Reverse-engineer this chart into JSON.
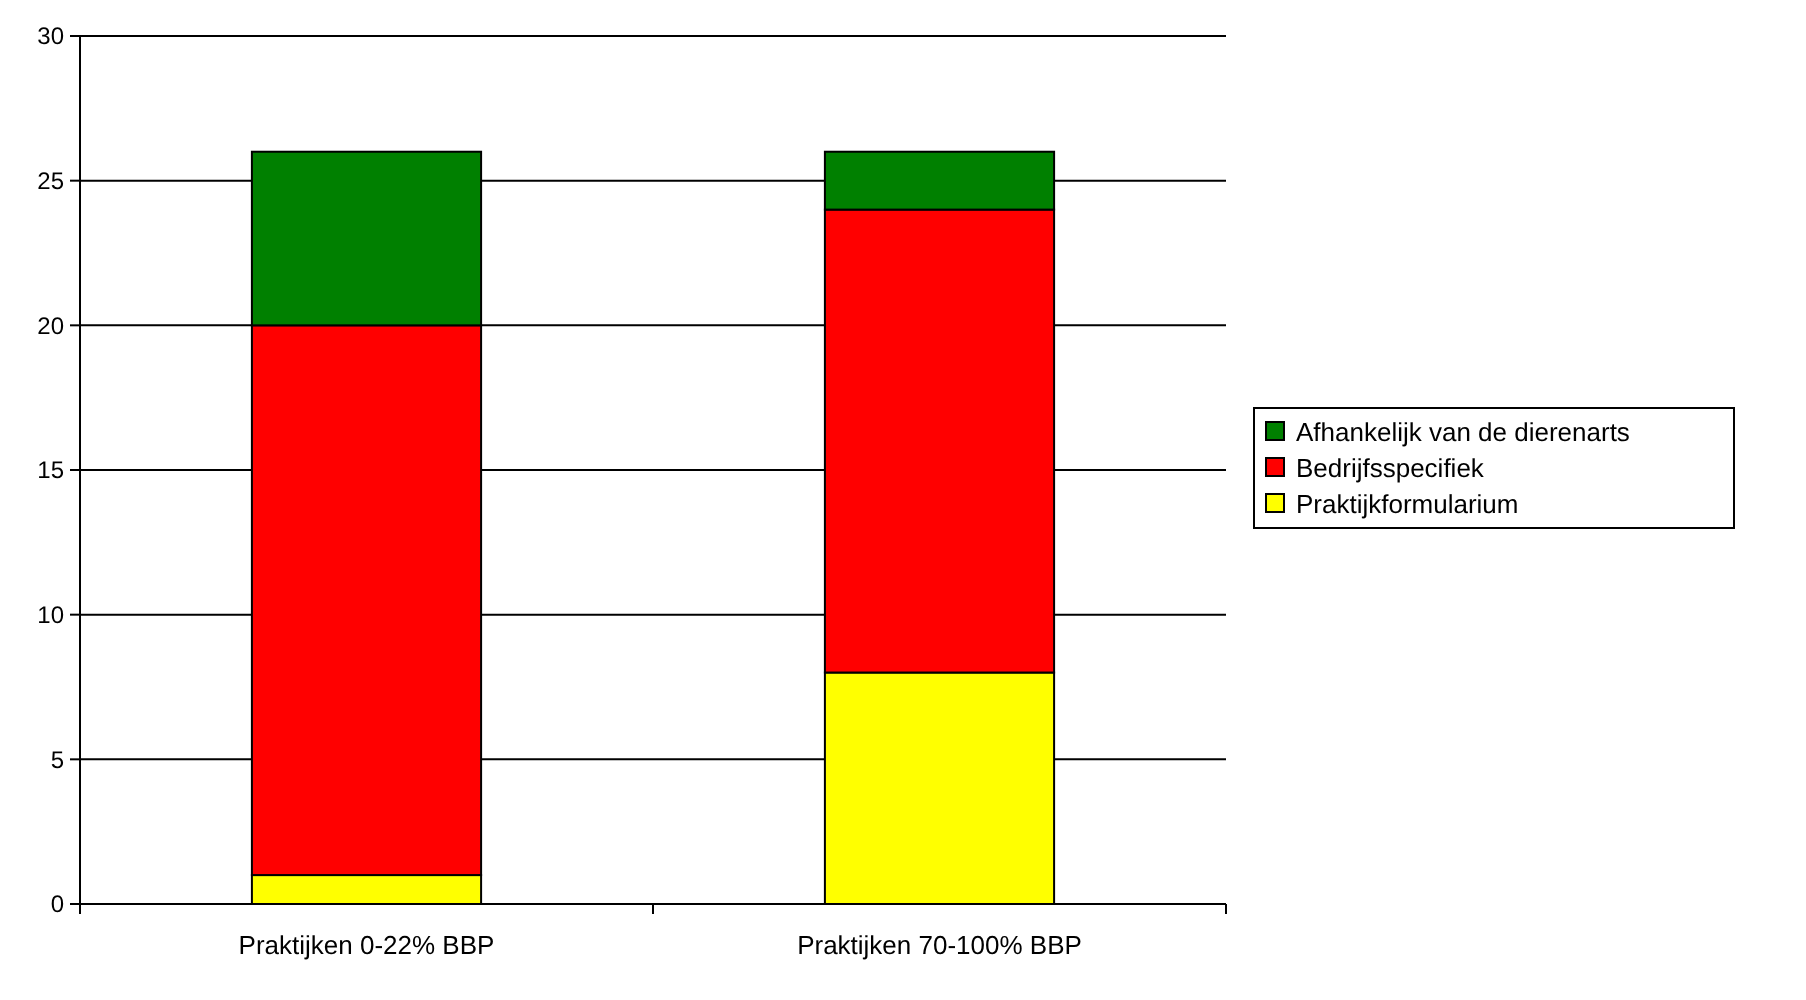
{
  "chart_data": {
    "type": "bar",
    "stacked": true,
    "categories": [
      "Praktijken 0-22% BBP",
      "Praktijken 70-100% BBP"
    ],
    "series": [
      {
        "name": "Praktijkformularium",
        "color": "#ffff00",
        "values": [
          1,
          8
        ]
      },
      {
        "name": "Bedrijfsspecifiek",
        "color": "#ff0000",
        "values": [
          19,
          16
        ]
      },
      {
        "name": "Afhankelijk van de dierenarts",
        "color": "#008000",
        "values": [
          6,
          2
        ]
      }
    ],
    "ylim": [
      0,
      30
    ],
    "yticks": [
      0,
      5,
      10,
      15,
      20,
      25,
      30
    ],
    "grid": "y",
    "legend": "right"
  }
}
